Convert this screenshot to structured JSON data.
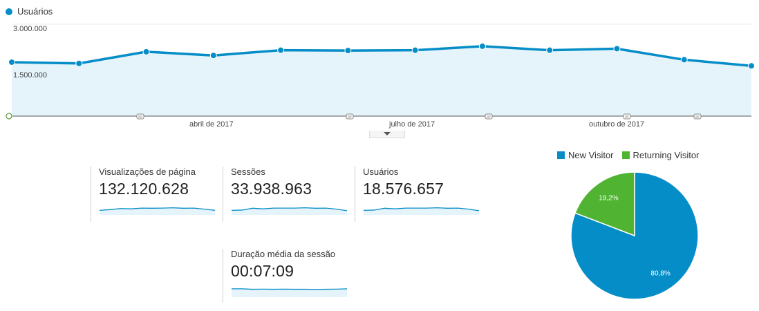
{
  "main_chart": {
    "legend_label": "Usuários",
    "line_color": "#058dc7",
    "fill_color": "#e5f3fa",
    "y_ticks": [
      "3.000.000",
      "1.500.000"
    ],
    "x_ticks": [
      "abril de 2017",
      "julho de 2017",
      "outubro de 2017"
    ],
    "annotation_icon": "comment-icon",
    "points": [
      1760000,
      1720000,
      2100000,
      1980000,
      2150000,
      2140000,
      2150000,
      2280000,
      2150000,
      2200000,
      1840000,
      1640000
    ]
  },
  "metrics": [
    {
      "label": "Visualizações de página",
      "value": "132.120.628",
      "spark": [
        0.3,
        0.35,
        0.42,
        0.4,
        0.45,
        0.44,
        0.45,
        0.47,
        0.44,
        0.45,
        0.38,
        0.3
      ]
    },
    {
      "label": "Sessões",
      "value": "33.938.963",
      "spark": [
        0.3,
        0.32,
        0.44,
        0.4,
        0.45,
        0.45,
        0.45,
        0.47,
        0.44,
        0.45,
        0.38,
        0.28
      ]
    },
    {
      "label": "Usuários",
      "value": "18.576.657",
      "spark": [
        0.3,
        0.32,
        0.44,
        0.4,
        0.45,
        0.45,
        0.45,
        0.47,
        0.44,
        0.45,
        0.38,
        0.28
      ]
    },
    {
      "label": "Duração média da sessão",
      "value": "00:07:09",
      "spark": [
        0.55,
        0.55,
        0.52,
        0.53,
        0.52,
        0.53,
        0.52,
        0.52,
        0.51,
        0.52,
        0.53,
        0.55
      ]
    }
  ],
  "pie": {
    "legend": [
      {
        "label": "New Visitor",
        "color": "#058dc7"
      },
      {
        "label": "Returning Visitor",
        "color": "#50b432"
      }
    ],
    "chart_data": {
      "type": "pie",
      "slices": [
        {
          "label": "New Visitor",
          "value": 80.8,
          "display": "80,8%"
        },
        {
          "label": "Returning Visitor",
          "value": 19.2,
          "display": "19,2%"
        }
      ]
    }
  }
}
